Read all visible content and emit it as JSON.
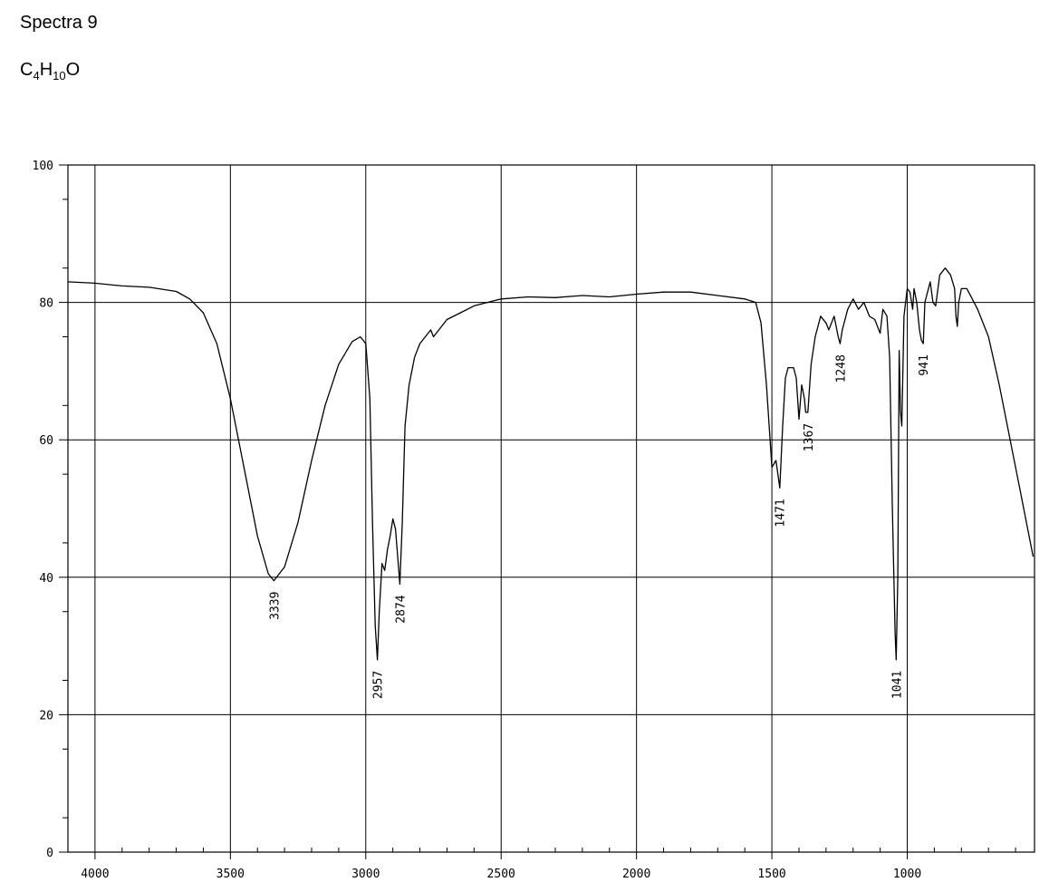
{
  "header": {
    "title": "Spectra 9",
    "formula_parts": [
      "C",
      "4",
      "H",
      "10",
      "O"
    ]
  },
  "chart_data": {
    "type": "line",
    "title": "Spectra 9",
    "xlabel": "",
    "ylabel": "",
    "xlim": [
      4100,
      530
    ],
    "ylim": [
      0,
      100
    ],
    "x_ticks": [
      4000,
      3500,
      3000,
      2500,
      2000,
      1500,
      1000
    ],
    "y_ticks": [
      0,
      20,
      40,
      60,
      80,
      100
    ],
    "grid": true,
    "colors": {
      "line": "#000000",
      "grid": "#000000"
    },
    "series": [
      {
        "points": [
          [
            4100,
            83
          ],
          [
            4000,
            82.8
          ],
          [
            3900,
            82.4
          ],
          [
            3800,
            82.2
          ],
          [
            3700,
            81.6
          ],
          [
            3650,
            80.5
          ],
          [
            3600,
            78.5
          ],
          [
            3550,
            74
          ],
          [
            3500,
            66
          ],
          [
            3450,
            56
          ],
          [
            3400,
            46
          ],
          [
            3360,
            40.5
          ],
          [
            3339,
            39.5
          ],
          [
            3300,
            41.5
          ],
          [
            3250,
            48
          ],
          [
            3200,
            57
          ],
          [
            3150,
            65
          ],
          [
            3100,
            71
          ],
          [
            3050,
            74.3
          ],
          [
            3020,
            75
          ],
          [
            3000,
            74
          ],
          [
            2985,
            66
          ],
          [
            2975,
            48
          ],
          [
            2965,
            33
          ],
          [
            2957,
            28
          ],
          [
            2950,
            35
          ],
          [
            2940,
            42
          ],
          [
            2930,
            41
          ],
          [
            2920,
            44
          ],
          [
            2910,
            46
          ],
          [
            2900,
            48.5
          ],
          [
            2890,
            47
          ],
          [
            2880,
            42
          ],
          [
            2874,
            39
          ],
          [
            2865,
            48
          ],
          [
            2855,
            62
          ],
          [
            2840,
            68
          ],
          [
            2820,
            72
          ],
          [
            2800,
            74
          ],
          [
            2760,
            76
          ],
          [
            2750,
            75
          ],
          [
            2700,
            77.5
          ],
          [
            2650,
            78.5
          ],
          [
            2600,
            79.5
          ],
          [
            2500,
            80.5
          ],
          [
            2400,
            80.8
          ],
          [
            2300,
            80.7
          ],
          [
            2200,
            81
          ],
          [
            2100,
            80.8
          ],
          [
            2000,
            81.2
          ],
          [
            1900,
            81.5
          ],
          [
            1800,
            81.5
          ],
          [
            1700,
            81
          ],
          [
            1600,
            80.5
          ],
          [
            1560,
            80
          ],
          [
            1540,
            77
          ],
          [
            1520,
            68
          ],
          [
            1500,
            56
          ],
          [
            1485,
            57
          ],
          [
            1471,
            53
          ],
          [
            1460,
            62
          ],
          [
            1450,
            69
          ],
          [
            1440,
            70.5
          ],
          [
            1420,
            70.5
          ],
          [
            1410,
            69
          ],
          [
            1400,
            63
          ],
          [
            1390,
            68
          ],
          [
            1380,
            66
          ],
          [
            1375,
            64
          ],
          [
            1367,
            64
          ],
          [
            1355,
            71
          ],
          [
            1340,
            75
          ],
          [
            1320,
            78
          ],
          [
            1300,
            77
          ],
          [
            1290,
            76
          ],
          [
            1270,
            78
          ],
          [
            1255,
            75
          ],
          [
            1248,
            74
          ],
          [
            1240,
            76
          ],
          [
            1220,
            79
          ],
          [
            1200,
            80.5
          ],
          [
            1180,
            79
          ],
          [
            1160,
            80
          ],
          [
            1140,
            78
          ],
          [
            1120,
            77.5
          ],
          [
            1100,
            75.5
          ],
          [
            1090,
            79
          ],
          [
            1075,
            78
          ],
          [
            1065,
            72
          ],
          [
            1055,
            50
          ],
          [
            1045,
            32
          ],
          [
            1041,
            28
          ],
          [
            1035,
            40
          ],
          [
            1030,
            73
          ],
          [
            1025,
            64
          ],
          [
            1020,
            62
          ],
          [
            1012,
            78
          ],
          [
            1000,
            82
          ],
          [
            990,
            81.5
          ],
          [
            980,
            79
          ],
          [
            975,
            82
          ],
          [
            965,
            80
          ],
          [
            955,
            76
          ],
          [
            948,
            74.5
          ],
          [
            941,
            74
          ],
          [
            935,
            80
          ],
          [
            925,
            81.5
          ],
          [
            915,
            83
          ],
          [
            905,
            80
          ],
          [
            895,
            79.5
          ],
          [
            880,
            84
          ],
          [
            860,
            85
          ],
          [
            840,
            84
          ],
          [
            825,
            82
          ],
          [
            820,
            78
          ],
          [
            815,
            76.5
          ],
          [
            810,
            80
          ],
          [
            800,
            82
          ],
          [
            780,
            82
          ],
          [
            760,
            80.5
          ],
          [
            740,
            79
          ],
          [
            700,
            75
          ],
          [
            660,
            68
          ],
          [
            620,
            60
          ],
          [
            580,
            52
          ],
          [
            550,
            46
          ],
          [
            535,
            43
          ]
        ]
      }
    ],
    "annotations": [
      {
        "text": "3339",
        "x": 3339,
        "y": 39.5
      },
      {
        "text": "2957",
        "x": 2957,
        "y": 28
      },
      {
        "text": "2874",
        "x": 2874,
        "y": 39
      },
      {
        "text": "1471",
        "x": 1471,
        "y": 53
      },
      {
        "text": "1367",
        "x": 1367,
        "y": 64
      },
      {
        "text": "1248",
        "x": 1248,
        "y": 74
      },
      {
        "text": "1041",
        "x": 1041,
        "y": 28
      },
      {
        "text": "941",
        "x": 941,
        "y": 74
      }
    ]
  }
}
